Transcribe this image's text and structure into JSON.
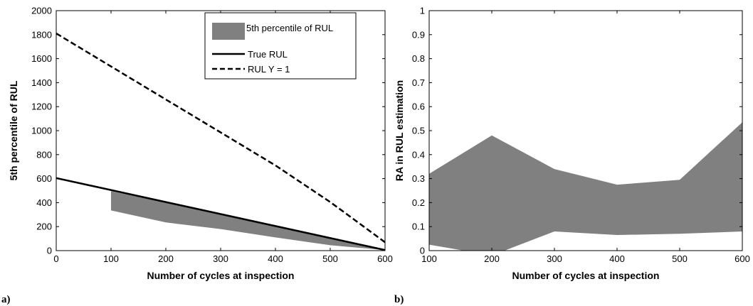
{
  "panel_labels": [
    "a)",
    "b)"
  ],
  "colors": {
    "band": "#808080",
    "line": "#000000",
    "frame": "#000000"
  },
  "chart_data": [
    {
      "type": "area",
      "xlabel": "Number of cycles at inspection",
      "ylabel": "5th percentile of RUL",
      "xlim": [
        0,
        600
      ],
      "ylim": [
        0,
        2000
      ],
      "xticks": [
        0,
        100,
        200,
        300,
        400,
        500,
        600
      ],
      "yticks": [
        0,
        200,
        400,
        600,
        800,
        1000,
        1200,
        1400,
        1600,
        1800,
        2000
      ],
      "grid": false,
      "legend_position": "top-right",
      "series": [
        {
          "name": "5th percentile of RUL",
          "kind": "band",
          "x": [
            100,
            200,
            300,
            400,
            500,
            600
          ],
          "upper": [
            495,
            400,
            300,
            200,
            100,
            5
          ],
          "lower": [
            335,
            235,
            180,
            110,
            45,
            5
          ]
        },
        {
          "name": "True RUL",
          "kind": "solid",
          "x": [
            0,
            600
          ],
          "y": [
            605,
            5
          ]
        },
        {
          "name": "RUL Y = 1",
          "kind": "dashed",
          "x": [
            0,
            100,
            200,
            300,
            400,
            500,
            600
          ],
          "y": [
            1810,
            1535,
            1260,
            985,
            710,
            405,
            70
          ]
        }
      ]
    },
    {
      "type": "area",
      "xlabel": "Number of cycles at inspection",
      "ylabel": "RA in RUL estimation",
      "xlim": [
        100,
        600
      ],
      "ylim": [
        0,
        1
      ],
      "xticks": [
        100,
        200,
        300,
        400,
        500,
        600
      ],
      "yticks": [
        0,
        0.1,
        0.2,
        0.3,
        0.4,
        0.5,
        0.6,
        0.7,
        0.8,
        0.9,
        1
      ],
      "grid": false,
      "series": [
        {
          "kind": "band",
          "x": [
            100,
            200,
            300,
            400,
            500,
            600
          ],
          "upper": [
            0.32,
            0.48,
            0.34,
            0.275,
            0.295,
            0.535
          ],
          "lower": [
            0.025,
            -0.02,
            0.08,
            0.065,
            0.07,
            0.08
          ]
        }
      ]
    }
  ]
}
